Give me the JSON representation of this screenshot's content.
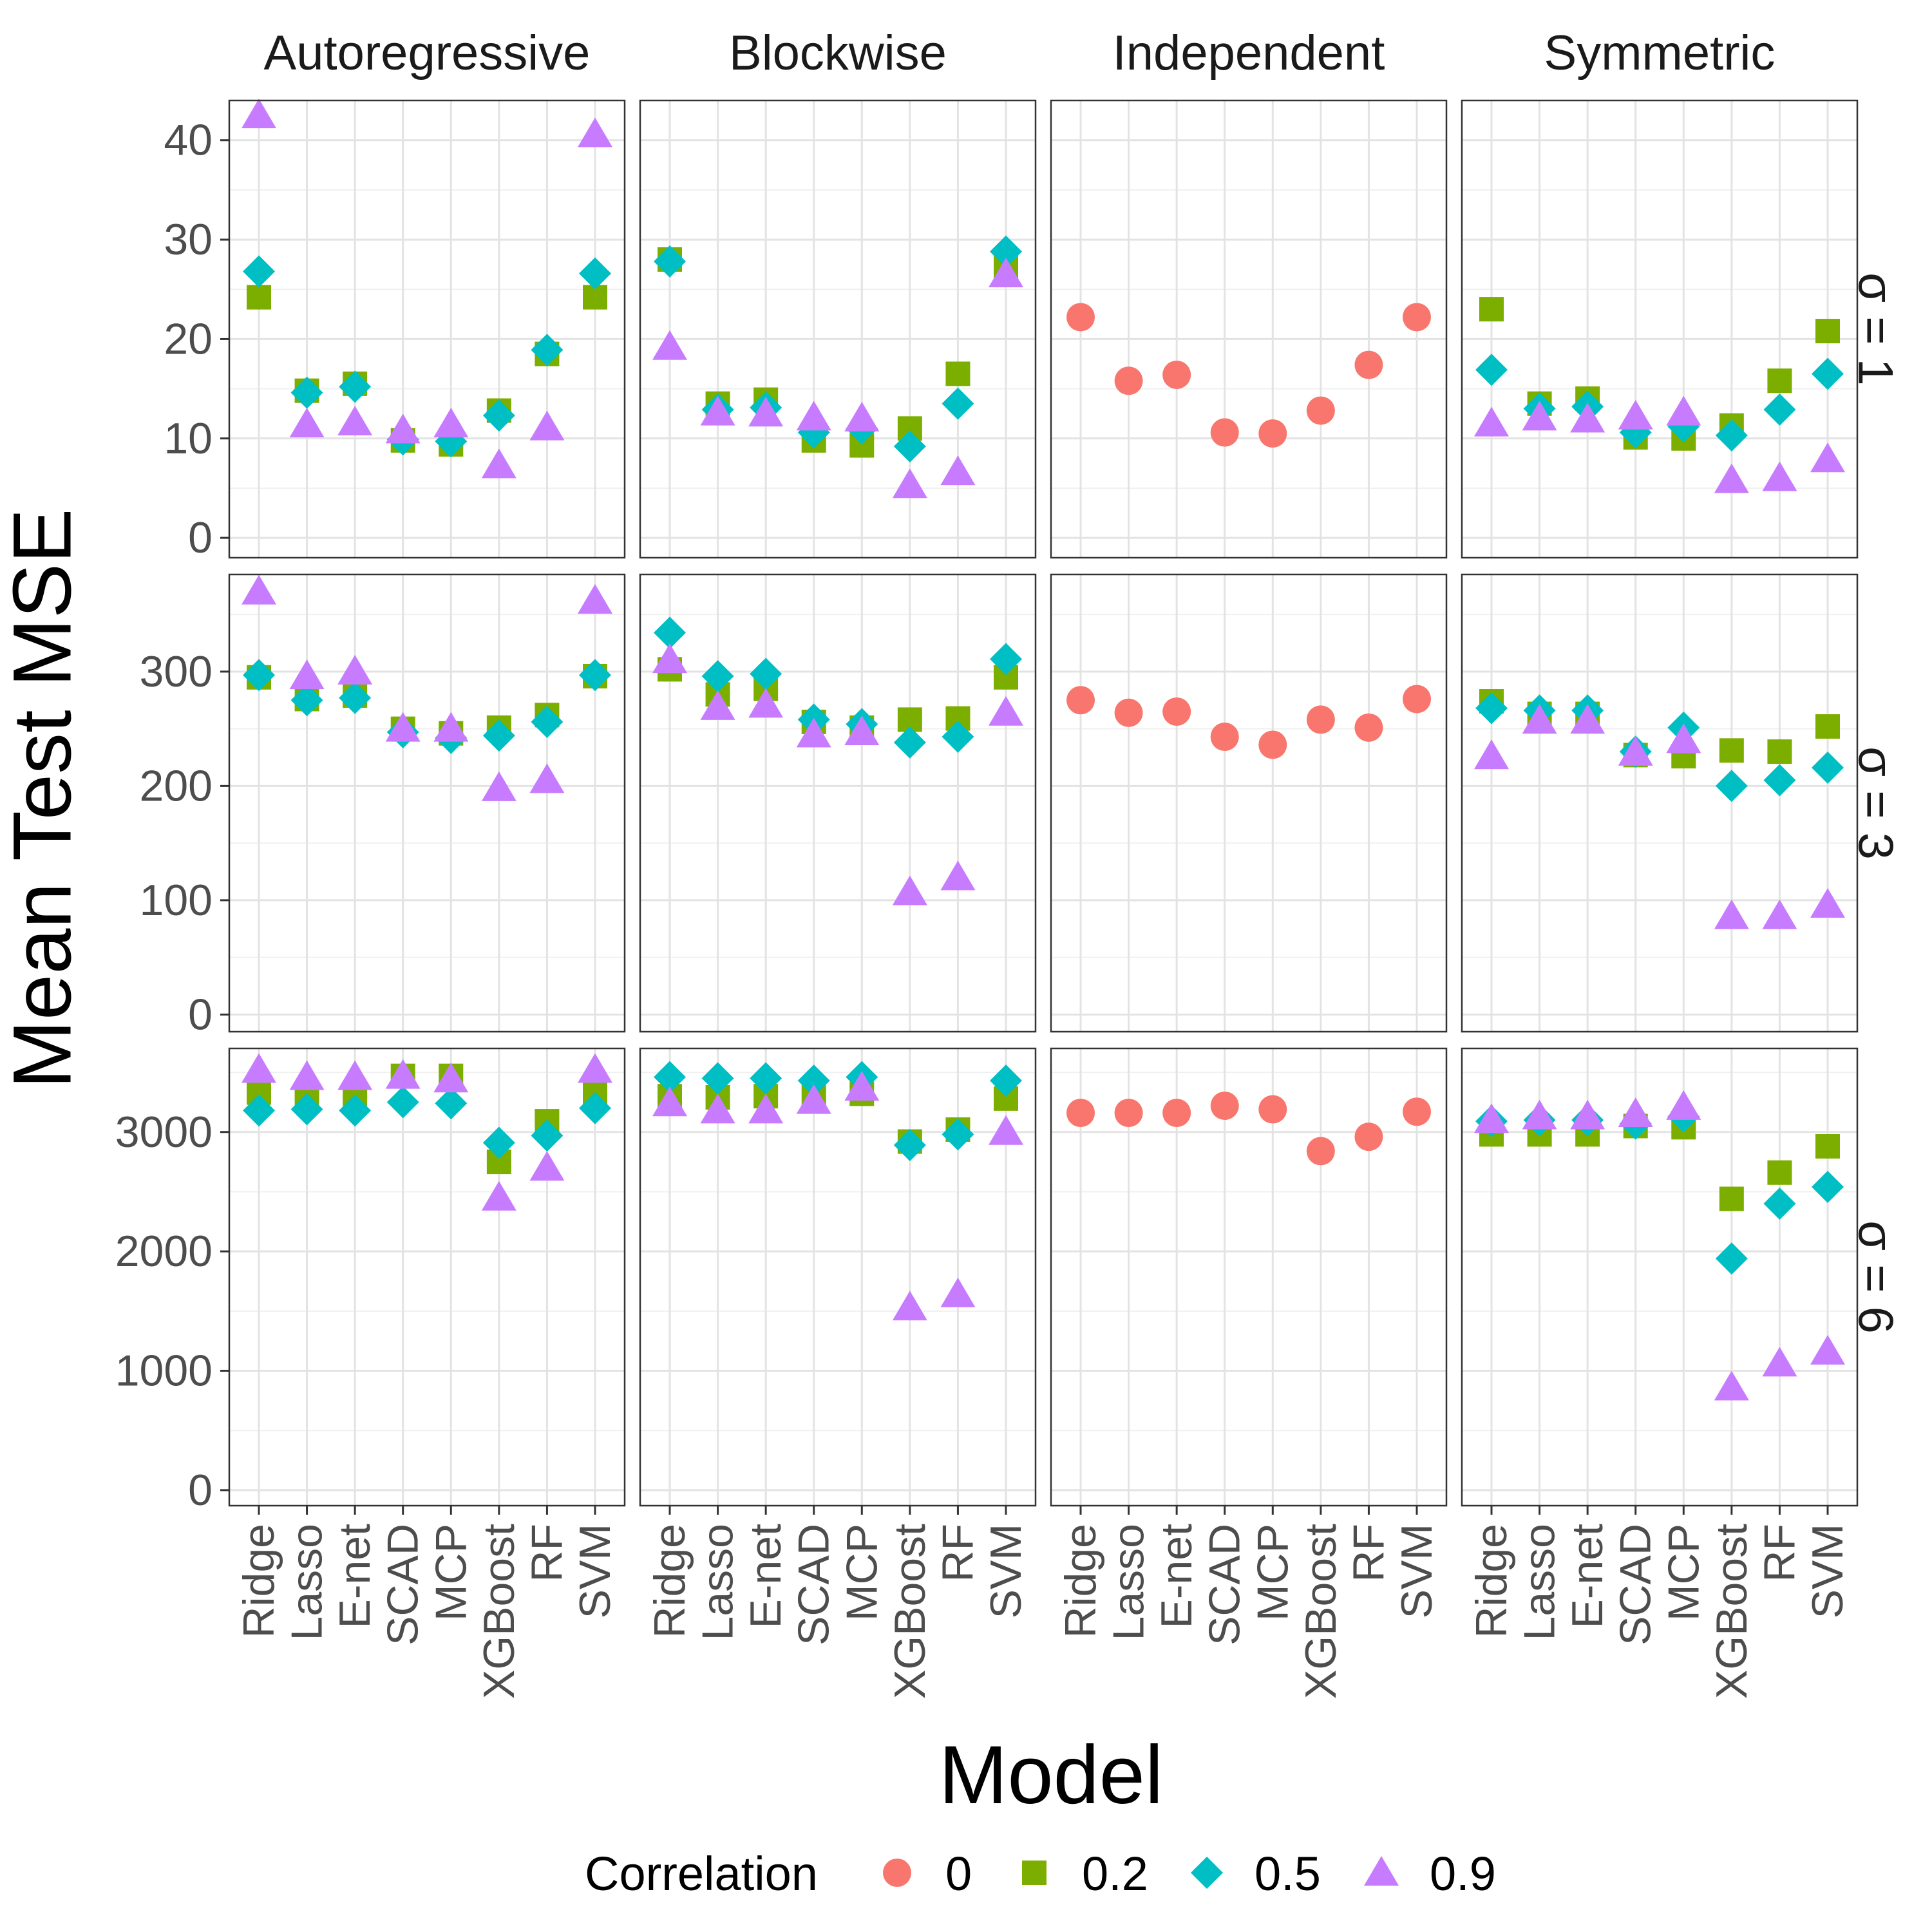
{
  "chart_data": {
    "type": "scatter",
    "title": "",
    "xlabel": "Model",
    "ylabel": "Mean Test MSE",
    "facet_columns": [
      "Autoregressive",
      "Blockwise",
      "Independent",
      "Symmetric"
    ],
    "facet_rows": [
      "σ = 1",
      "σ = 3",
      "σ = 6"
    ],
    "categories": [
      "Ridge",
      "Lasso",
      "E-net",
      "SCAD",
      "MCP",
      "XGBoost",
      "RF",
      "SVM"
    ],
    "legend": {
      "title": "Correlation",
      "position": "bottom",
      "items": [
        {
          "label": "0",
          "shape": "circle",
          "color": "#F8766D"
        },
        {
          "label": "0.2",
          "shape": "square",
          "color": "#7CAE00"
        },
        {
          "label": "0.5",
          "shape": "diamond",
          "color": "#00BFC4"
        },
        {
          "label": "0.9",
          "shape": "triangle",
          "color": "#C77CFF"
        }
      ]
    },
    "rows": [
      {
        "label": "σ = 1",
        "ylim": [
          -2,
          44
        ],
        "yticks": [
          0,
          10,
          20,
          30,
          40
        ],
        "panels": [
          {
            "facet": "Autoregressive",
            "series": [
              {
                "name": "0.2",
                "values": [
                  24.2,
                  14.8,
                  15.5,
                  9.8,
                  9.4,
                  12.8,
                  18.5,
                  24.2
                ]
              },
              {
                "name": "0.5",
                "values": [
                  26.8,
                  14.6,
                  15.2,
                  9.9,
                  9.7,
                  12.3,
                  18.9,
                  26.6
                ]
              },
              {
                "name": "0.9",
                "values": [
                  42.5,
                  11.4,
                  11.6,
                  10.8,
                  11.4,
                  7.3,
                  11.1,
                  40.6
                ]
              }
            ]
          },
          {
            "facet": "Blockwise",
            "series": [
              {
                "name": "0.2",
                "values": [
                  28.0,
                  13.5,
                  13.9,
                  9.8,
                  9.3,
                  11.0,
                  16.5,
                  27.3
                ]
              },
              {
                "name": "0.5",
                "values": [
                  27.8,
                  12.9,
                  13.1,
                  10.6,
                  11.0,
                  9.2,
                  13.5,
                  28.8
                ]
              },
              {
                "name": "0.9",
                "values": [
                  19.2,
                  12.6,
                  12.5,
                  12.1,
                  12.0,
                  5.3,
                  6.6,
                  26.5
                ]
              }
            ]
          },
          {
            "facet": "Independent",
            "series": [
              {
                "name": "0",
                "values": [
                  22.2,
                  15.8,
                  16.4,
                  10.6,
                  10.5,
                  12.8,
                  17.4,
                  22.2
                ]
              }
            ]
          },
          {
            "facet": "Symmetric",
            "series": [
              {
                "name": "0.2",
                "values": [
                  23.0,
                  13.5,
                  14.0,
                  10.1,
                  10.0,
                  11.3,
                  15.8,
                  20.8
                ]
              },
              {
                "name": "0.5",
                "values": [
                  16.9,
                  13.0,
                  13.2,
                  10.6,
                  11.2,
                  10.3,
                  12.9,
                  16.5
                ]
              },
              {
                "name": "0.9",
                "values": [
                  11.5,
                  12.1,
                  11.9,
                  12.2,
                  12.6,
                  5.8,
                  6.0,
                  7.9
                ]
              }
            ]
          }
        ]
      },
      {
        "label": "σ = 3",
        "ylim": [
          -15,
          385
        ],
        "yticks": [
          0,
          100,
          200,
          300
        ],
        "panels": [
          {
            "facet": "Autoregressive",
            "series": [
              {
                "name": "0.2",
                "values": [
                  295,
                  276,
                  279,
                  250,
                  246,
                  251,
                  262,
                  296
                ]
              },
              {
                "name": "0.5",
                "values": [
                  297,
                  275,
                  277,
                  247,
                  242,
                  244,
                  256,
                  297
                ]
              },
              {
                "name": "0.9",
                "values": [
                  370,
                  296,
                  300,
                  250,
                  250,
                  198,
                  205,
                  362
                ]
              }
            ]
          },
          {
            "facet": "Blockwise",
            "series": [
              {
                "name": "0.2",
                "values": [
                  302,
                  280,
                  285,
                  256,
                  251,
                  258,
                  259,
                  295
                ]
              },
              {
                "name": "0.5",
                "values": [
                  334,
                  296,
                  298,
                  258,
                  254,
                  238,
                  243,
                  311
                ]
              },
              {
                "name": "0.9",
                "values": [
                  310,
                  269,
                  271,
                  245,
                  247,
                  107,
                  120,
                  264
                ]
              }
            ]
          },
          {
            "facet": "Independent",
            "series": [
              {
                "name": "0",
                "values": [
                  275,
                  264,
                  265,
                  243,
                  236,
                  258,
                  251,
                  276
                ]
              }
            ]
          },
          {
            "facet": "Symmetric",
            "series": [
              {
                "name": "0.2",
                "values": [
                  274,
                  263,
                  263,
                  227,
                  226,
                  231,
                  230,
                  252
                ]
              },
              {
                "name": "0.5",
                "values": [
                  268,
                  266,
                  266,
                  230,
                  251,
                  200,
                  205,
                  216
                ]
              },
              {
                "name": "0.9",
                "values": [
                  226,
                  257,
                  257,
                  229,
                  240,
                  86,
                  86,
                  96
                ]
              }
            ]
          }
        ]
      },
      {
        "label": "σ = 6",
        "ylim": [
          -130,
          3700
        ],
        "yticks": [
          0,
          1000,
          2000,
          3000
        ],
        "panels": [
          {
            "facet": "Autoregressive",
            "series": [
              {
                "name": "0.2",
                "values": [
                  3330,
                  3320,
                  3320,
                  3470,
                  3470,
                  2750,
                  3090,
                  3330
                ]
              },
              {
                "name": "0.5",
                "values": [
                  3180,
                  3190,
                  3180,
                  3250,
                  3240,
                  2910,
                  2970,
                  3200
                ]
              },
              {
                "name": "0.9",
                "values": [
                  3520,
                  3460,
                  3460,
                  3470,
                  3440,
                  2450,
                  2700,
                  3520
                ]
              }
            ]
          },
          {
            "facet": "Blockwise",
            "series": [
              {
                "name": "0.2",
                "values": [
                  3300,
                  3290,
                  3300,
                  3300,
                  3320,
                  2920,
                  3020,
                  3280
                ]
              },
              {
                "name": "0.5",
                "values": [
                  3460,
                  3450,
                  3450,
                  3430,
                  3460,
                  2890,
                  2980,
                  3430
                ]
              },
              {
                "name": "0.9",
                "values": [
                  3240,
                  3180,
                  3180,
                  3260,
                  3370,
                  1530,
                  1640,
                  3000
                ]
              }
            ]
          },
          {
            "facet": "Independent",
            "series": [
              {
                "name": "0",
                "values": [
                  3160,
                  3160,
                  3160,
                  3220,
                  3190,
                  2840,
                  2960,
                  3170
                ]
              }
            ]
          },
          {
            "facet": "Symmetric",
            "series": [
              {
                "name": "0.2",
                "values": [
                  2980,
                  2980,
                  2980,
                  3050,
                  3040,
                  2440,
                  2660,
                  2880
                ]
              },
              {
                "name": "0.5",
                "values": [
                  3090,
                  3100,
                  3100,
                  3070,
                  3130,
                  1940,
                  2400,
                  2540
                ]
              },
              {
                "name": "0.9",
                "values": [
                  3100,
                  3130,
                  3130,
                  3150,
                  3210,
                  860,
                  1060,
                  1160
                ]
              }
            ]
          }
        ]
      }
    ]
  }
}
